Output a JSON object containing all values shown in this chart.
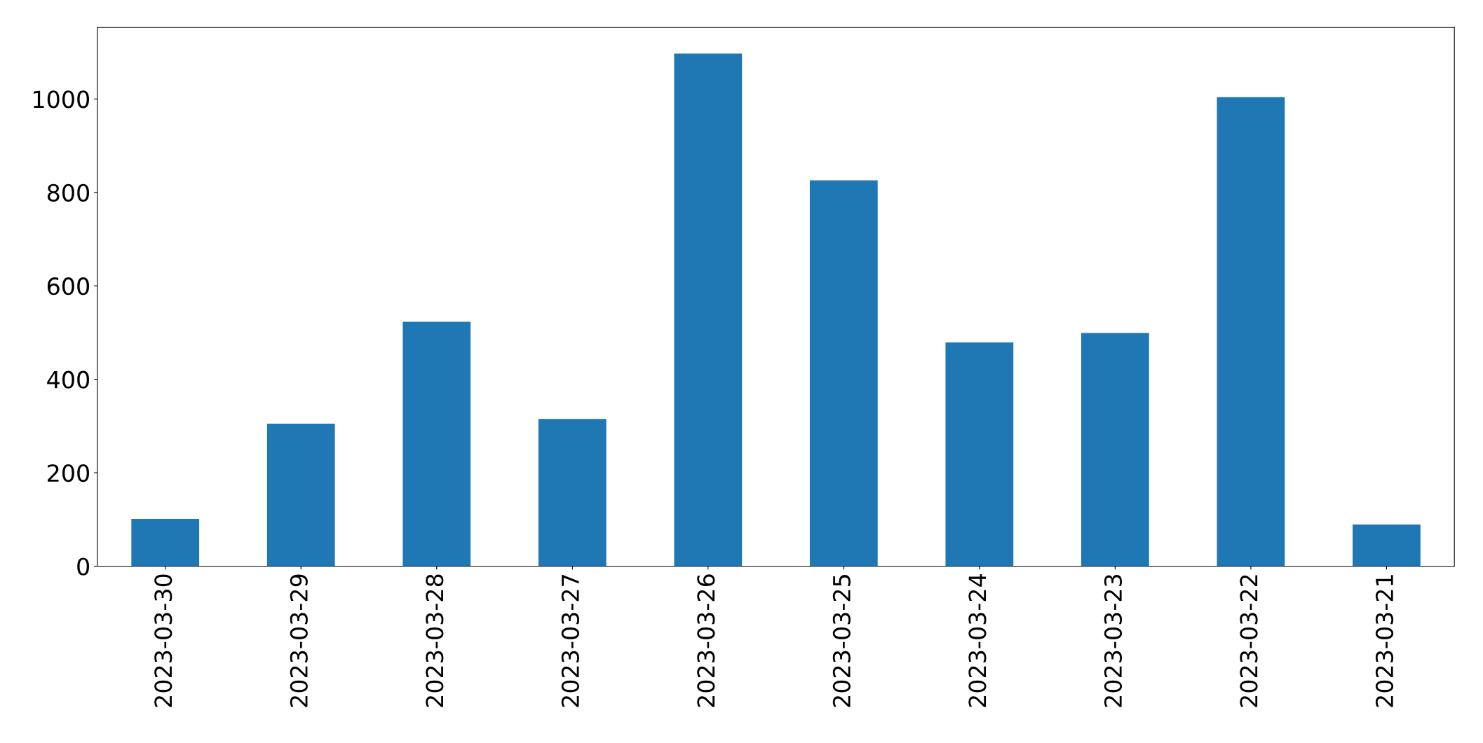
{
  "chart_data": {
    "type": "bar",
    "categories": [
      "2023-03-30",
      "2023-03-29",
      "2023-03-28",
      "2023-03-27",
      "2023-03-26",
      "2023-03-25",
      "2023-03-24",
      "2023-03-23",
      "2023-03-22",
      "2023-03-21"
    ],
    "values": [
      101,
      305,
      523,
      315,
      1097,
      826,
      479,
      499,
      1004,
      89
    ],
    "color": "#1f77b4",
    "ylim": [
      0,
      1153
    ],
    "yticks": [
      0,
      200,
      400,
      600,
      800,
      1000
    ],
    "grid": false,
    "legend": false
  }
}
